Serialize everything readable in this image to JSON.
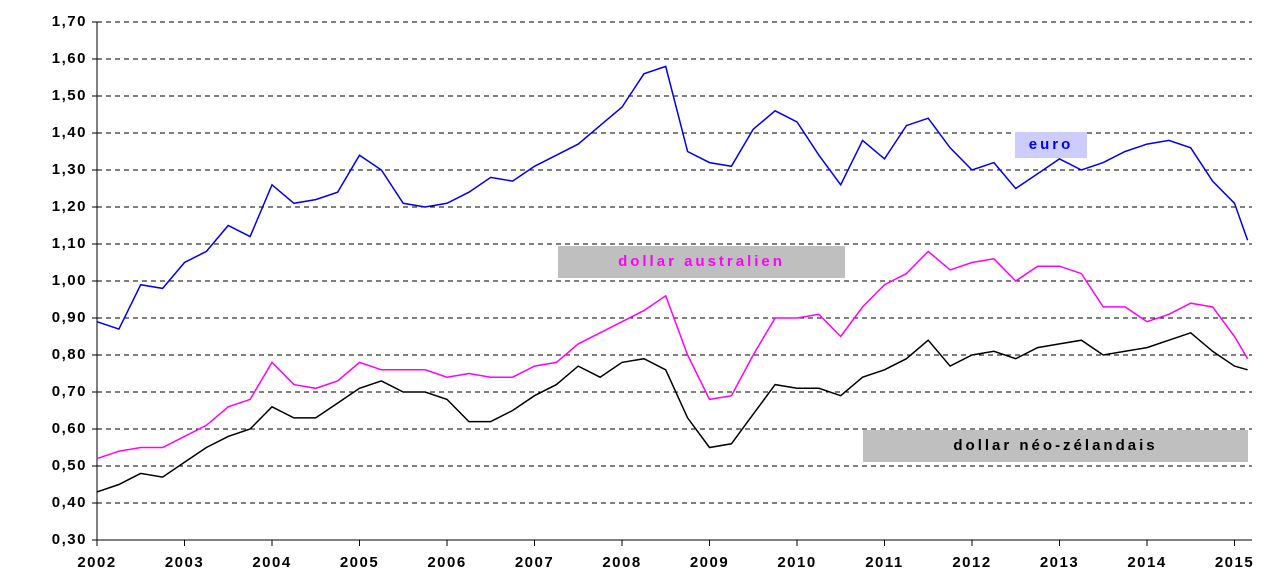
{
  "chart_data": {
    "type": "line",
    "xlim": [
      2002,
      2015.2
    ],
    "xticks": [
      2002,
      2003,
      2004,
      2005,
      2006,
      2007,
      2008,
      2009,
      2010,
      2011,
      2012,
      2013,
      2014,
      2015
    ],
    "ylim": [
      0.3,
      1.7
    ],
    "yticks": [
      {
        "value": 0.3,
        "label": "0,30"
      },
      {
        "value": 0.4,
        "label": "0,40"
      },
      {
        "value": 0.5,
        "label": "0,50"
      },
      {
        "value": 0.6,
        "label": "0,60"
      },
      {
        "value": 0.7,
        "label": "0,70"
      },
      {
        "value": 0.8,
        "label": "0,80"
      },
      {
        "value": 0.9,
        "label": "0,90"
      },
      {
        "value": 1.0,
        "label": "1,00"
      },
      {
        "value": 1.1,
        "label": "1,10"
      },
      {
        "value": 1.2,
        "label": "1,20"
      },
      {
        "value": 1.3,
        "label": "1,30"
      },
      {
        "value": 1.4,
        "label": "1,40"
      },
      {
        "value": 1.5,
        "label": "1,50"
      },
      {
        "value": 1.6,
        "label": "1,60"
      },
      {
        "value": 1.7,
        "label": "1,70"
      }
    ],
    "grid": true,
    "x": [
      2002,
      2002.25,
      2002.5,
      2002.75,
      2003,
      2003.25,
      2003.5,
      2003.75,
      2004,
      2004.25,
      2004.5,
      2004.75,
      2005,
      2005.25,
      2005.5,
      2005.75,
      2006,
      2006.25,
      2006.5,
      2006.75,
      2007,
      2007.25,
      2007.5,
      2007.75,
      2008,
      2008.25,
      2008.5,
      2008.75,
      2009,
      2009.25,
      2009.5,
      2009.75,
      2010,
      2010.25,
      2010.5,
      2010.75,
      2011,
      2011.25,
      2011.5,
      2011.75,
      2012,
      2012.25,
      2012.5,
      2012.75,
      2013,
      2013.25,
      2013.5,
      2013.75,
      2014,
      2014.25,
      2014.5,
      2014.75,
      2015,
      2015.15
    ],
    "series": [
      {
        "name": "euro",
        "color": "#0000ee",
        "values": [
          0.89,
          0.87,
          0.99,
          0.98,
          1.05,
          1.08,
          1.15,
          1.12,
          1.26,
          1.21,
          1.22,
          1.24,
          1.34,
          1.3,
          1.21,
          1.2,
          1.21,
          1.24,
          1.28,
          1.27,
          1.31,
          1.34,
          1.37,
          1.42,
          1.47,
          1.56,
          1.58,
          1.35,
          1.32,
          1.31,
          1.41,
          1.46,
          1.43,
          1.34,
          1.26,
          1.38,
          1.33,
          1.42,
          1.44,
          1.36,
          1.3,
          1.32,
          1.25,
          1.29,
          1.33,
          1.3,
          1.32,
          1.35,
          1.37,
          1.38,
          1.36,
          1.27,
          1.21,
          1.11
        ]
      },
      {
        "name": "dollar australien",
        "color": "#ff00ff",
        "values": [
          0.52,
          0.54,
          0.55,
          0.55,
          0.58,
          0.61,
          0.66,
          0.68,
          0.78,
          0.72,
          0.71,
          0.73,
          0.78,
          0.76,
          0.76,
          0.76,
          0.74,
          0.75,
          0.74,
          0.74,
          0.77,
          0.78,
          0.83,
          0.86,
          0.89,
          0.92,
          0.96,
          0.8,
          0.68,
          0.69,
          0.8,
          0.9,
          0.9,
          0.91,
          0.85,
          0.93,
          0.99,
          1.02,
          1.08,
          1.03,
          1.05,
          1.06,
          1.0,
          1.04,
          1.04,
          1.02,
          0.93,
          0.93,
          0.89,
          0.91,
          0.94,
          0.93,
          0.85,
          0.79
        ]
      },
      {
        "name": "dollar néo-zélandais",
        "color": "#000000",
        "values": [
          0.43,
          0.45,
          0.48,
          0.47,
          0.51,
          0.55,
          0.58,
          0.6,
          0.66,
          0.63,
          0.63,
          0.67,
          0.71,
          0.73,
          0.7,
          0.7,
          0.68,
          0.62,
          0.62,
          0.65,
          0.69,
          0.72,
          0.77,
          0.74,
          0.78,
          0.79,
          0.76,
          0.63,
          0.55,
          0.56,
          0.64,
          0.72,
          0.71,
          0.71,
          0.69,
          0.74,
          0.76,
          0.79,
          0.84,
          0.77,
          0.8,
          0.81,
          0.79,
          0.82,
          0.83,
          0.84,
          0.8,
          0.81,
          0.82,
          0.84,
          0.86,
          0.81,
          0.77,
          0.76
        ]
      }
    ]
  }
}
